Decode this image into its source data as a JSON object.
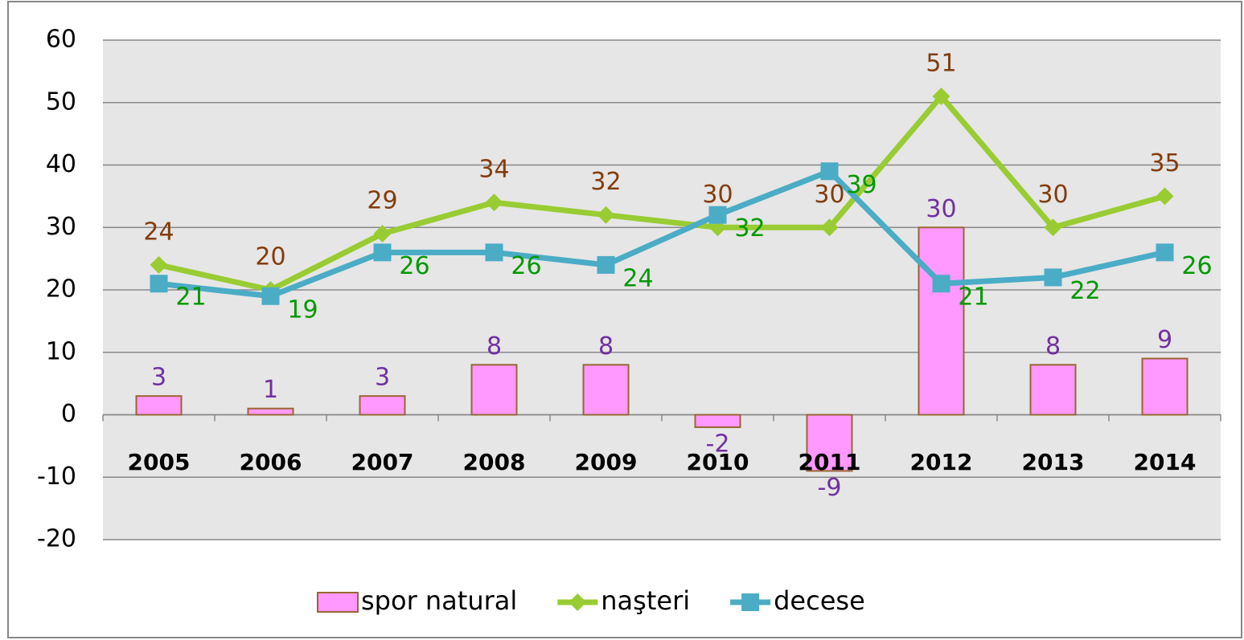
{
  "chart_data": {
    "type": "bar",
    "categories": [
      "2005",
      "2006",
      "2007",
      "2008",
      "2009",
      "2010",
      "2011",
      "2012",
      "2013",
      "2014"
    ],
    "series": [
      {
        "name": "spor natural",
        "type": "bar",
        "color": "#ff99ff",
        "values": [
          3,
          1,
          3,
          8,
          8,
          -2,
          -9,
          30,
          8,
          9
        ]
      },
      {
        "name": "naşteri",
        "type": "line",
        "color": "#99cc33",
        "values": [
          24,
          20,
          29,
          34,
          32,
          30,
          30,
          51,
          30,
          35
        ]
      },
      {
        "name": "decese",
        "type": "line",
        "color": "#4bacc6",
        "values": [
          21,
          19,
          26,
          26,
          24,
          32,
          39,
          21,
          22,
          26
        ]
      }
    ],
    "ylim": [
      -20,
      60
    ],
    "yticks": [
      -20,
      -10,
      0,
      10,
      20,
      30,
      40,
      50,
      60
    ],
    "grid": true,
    "legend": "bottom"
  }
}
